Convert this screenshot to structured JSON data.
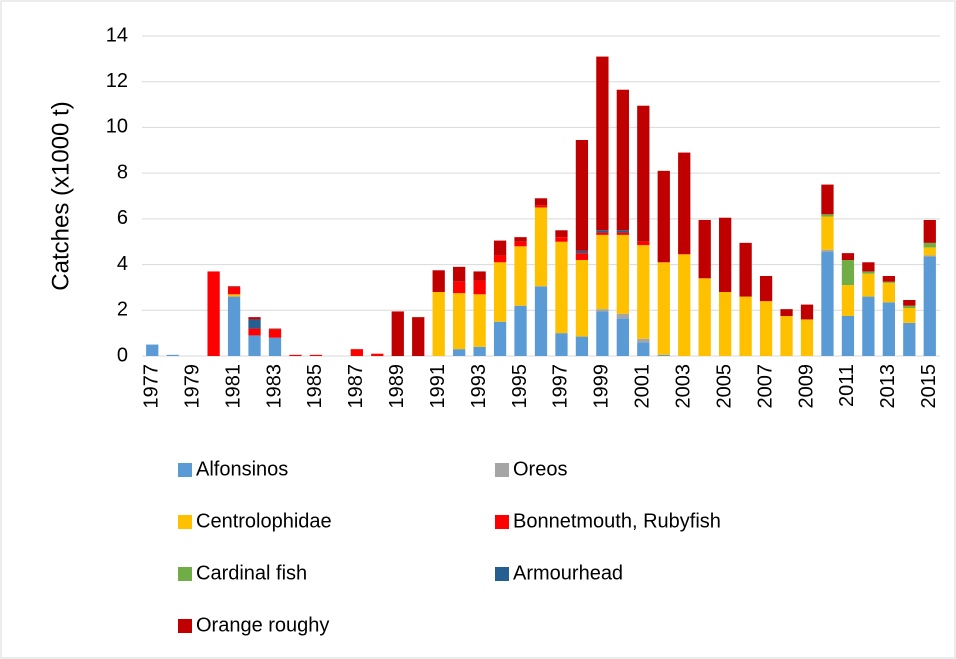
{
  "chart_data": {
    "type": "bar",
    "stacked": true,
    "ylabel": "Catches (x1000 t)",
    "categories": [
      "1977",
      null,
      "1979",
      null,
      "1981",
      null,
      "1983",
      null,
      "1985",
      null,
      "1987",
      null,
      "1989",
      null,
      "1991",
      null,
      "1993",
      null,
      "1995",
      null,
      "1997",
      null,
      "1999",
      null,
      "2001",
      null,
      "2003",
      null,
      "2005",
      null,
      "2007",
      null,
      "2009",
      null,
      "2011",
      null,
      "2013",
      null,
      "2015"
    ],
    "series": [
      {
        "name": "Alfonsinos",
        "color": "#5b9bd5",
        "values": [
          0.5,
          0.05,
          0,
          0,
          2.6,
          0.9,
          0.8,
          0,
          0,
          0,
          0,
          0,
          0,
          0,
          0,
          0.3,
          0.4,
          1.5,
          2.2,
          3.05,
          1.0,
          0.85,
          1.95,
          1.65,
          0.6,
          0.05,
          0,
          0,
          0,
          0,
          0,
          0,
          0,
          4.55,
          1.75,
          2.6,
          2.35,
          1.45,
          4.35
        ]
      },
      {
        "name": "Oreos",
        "color": "#a5a5a5",
        "values": [
          0,
          0,
          0,
          0,
          0,
          0,
          0,
          0,
          0,
          0,
          0,
          0,
          0,
          0,
          0,
          0,
          0,
          0,
          0,
          0,
          0,
          0,
          0.1,
          0.2,
          0.15,
          0,
          0,
          0,
          0,
          0,
          0,
          0,
          0,
          0.1,
          0,
          0,
          0,
          0,
          0.05
        ]
      },
      {
        "name": "Centrolophidae",
        "color": "#ffc000",
        "values": [
          0,
          0,
          0,
          0,
          0.1,
          0,
          0,
          0,
          0,
          0,
          0,
          0,
          0,
          0,
          2.8,
          2.45,
          2.3,
          2.6,
          2.6,
          3.45,
          4.0,
          3.35,
          3.25,
          3.45,
          4.1,
          4.05,
          4.45,
          3.4,
          2.8,
          2.6,
          2.4,
          1.75,
          1.6,
          1.45,
          1.35,
          1.0,
          0.85,
          0.65,
          0.35
        ]
      },
      {
        "name": "Bonnetmouth, Rubyfish",
        "color": "#ff0000",
        "values": [
          0,
          0,
          0,
          3.7,
          0.3,
          0.3,
          0.35,
          0.05,
          0.05,
          0,
          0.3,
          0.1,
          0,
          0,
          0,
          0.5,
          0.6,
          0.3,
          0.2,
          0.1,
          0.2,
          0.3,
          0.1,
          0.1,
          0.15,
          0,
          0,
          0,
          0,
          0,
          0,
          0,
          0,
          0,
          0,
          0,
          0,
          0,
          0
        ]
      },
      {
        "name": "Cardinal fish",
        "color": "#70ad47",
        "values": [
          0,
          0,
          0,
          0,
          0,
          0,
          0,
          0,
          0,
          0,
          0,
          0,
          0,
          0,
          0,
          0,
          0,
          0,
          0,
          0,
          0,
          0,
          0,
          0,
          0,
          0,
          0,
          0,
          0,
          0,
          0,
          0,
          0,
          0.1,
          1.1,
          0.1,
          0.05,
          0.1,
          0.2
        ]
      },
      {
        "name": "Armourhead",
        "color": "#255e91",
        "values": [
          0,
          0,
          0,
          0,
          0,
          0.4,
          0,
          0,
          0,
          0,
          0,
          0,
          0,
          0,
          0,
          0,
          0,
          0,
          0,
          0,
          0,
          0.1,
          0.1,
          0.1,
          0,
          0,
          0,
          0,
          0,
          0,
          0,
          0,
          0,
          0,
          0,
          0,
          0,
          0,
          0
        ]
      },
      {
        "name": "Orange roughy",
        "color": "#c00000",
        "values": [
          0,
          0,
          0,
          0,
          0.05,
          0.1,
          0.05,
          0,
          0,
          0,
          0,
          0,
          1.95,
          1.7,
          0.95,
          0.65,
          0.4,
          0.65,
          0.2,
          0.3,
          0.3,
          4.85,
          7.6,
          6.15,
          5.95,
          4.0,
          4.45,
          2.55,
          3.25,
          2.35,
          1.1,
          0.3,
          0.65,
          1.3,
          0.3,
          0.4,
          0.25,
          0.25,
          1.0
        ]
      }
    ],
    "ylim": [
      0,
      14
    ],
    "yticks": [
      0,
      2,
      4,
      6,
      8,
      10,
      12,
      14
    ],
    "grid": true,
    "legend": "bottom"
  }
}
